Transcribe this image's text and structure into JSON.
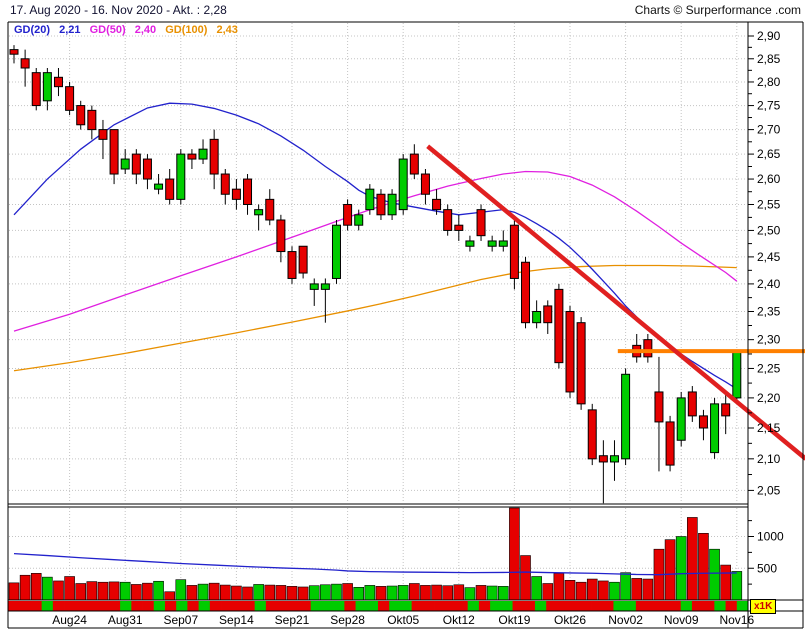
{
  "header": {
    "title": "17. Aug 2020 - 16. Nov 2020 - Akt. : 2,28",
    "source": "Charts © Surperformance .com"
  },
  "legend": {
    "items": [
      {
        "label": "GD(20)",
        "value": "2,21",
        "color": "#2222cc"
      },
      {
        "label": "GD(50)",
        "value": "2,40",
        "color": "#e020e0"
      },
      {
        "label": "GD(100)",
        "value": "2,43",
        "color": "#e89000"
      }
    ]
  },
  "badge": {
    "label": "x1K",
    "bg": "#ffff00",
    "fg": "#cc0000"
  },
  "colors": {
    "up": "#00cc00",
    "down": "#e60000",
    "candle_border": "#000000",
    "ma20": "#2222cc",
    "ma50": "#e020e0",
    "ma100": "#e89000",
    "trend": "#e02020",
    "hline": "#ff8000",
    "vol_avg": "#2222cc",
    "grid": "#c4c4c4",
    "axis": "#000000"
  },
  "chart_data": {
    "type": "candlestick",
    "title": "17. Aug 2020 - 16. Nov 2020 - Akt. : 2,28",
    "last_price": "2,28",
    "y_scale": "log",
    "ylim": [
      2.03,
      2.93
    ],
    "y_ticks": [
      2.9,
      2.85,
      2.8,
      2.75,
      2.7,
      2.65,
      2.6,
      2.55,
      2.5,
      2.45,
      2.4,
      2.35,
      2.3,
      2.25,
      2.2,
      2.15,
      2.1,
      2.05
    ],
    "x_ticks": [
      {
        "i": 5,
        "label": "Aug24"
      },
      {
        "i": 10,
        "label": "Aug31"
      },
      {
        "i": 15,
        "label": "Sep07"
      },
      {
        "i": 20,
        "label": "Sep14"
      },
      {
        "i": 25,
        "label": "Sep21"
      },
      {
        "i": 30,
        "label": "Sep28"
      },
      {
        "i": 35,
        "label": "Okt05"
      },
      {
        "i": 40,
        "label": "Okt12"
      },
      {
        "i": 45,
        "label": "Okt19"
      },
      {
        "i": 50,
        "label": "Okt26"
      },
      {
        "i": 55,
        "label": "Nov02"
      },
      {
        "i": 60,
        "label": "Nov09"
      },
      {
        "i": 65,
        "label": "Nov16"
      }
    ],
    "ohlc": [
      [
        2.87,
        2.88,
        2.84,
        2.86
      ],
      [
        2.85,
        2.87,
        2.79,
        2.83
      ],
      [
        2.82,
        2.83,
        2.74,
        2.75
      ],
      [
        2.76,
        2.83,
        2.74,
        2.82
      ],
      [
        2.81,
        2.83,
        2.77,
        2.79
      ],
      [
        2.79,
        2.8,
        2.73,
        2.74
      ],
      [
        2.75,
        2.76,
        2.7,
        2.71
      ],
      [
        2.74,
        2.75,
        2.68,
        2.7
      ],
      [
        2.7,
        2.72,
        2.64,
        2.68
      ],
      [
        2.7,
        2.7,
        2.59,
        2.61
      ],
      [
        2.62,
        2.66,
        2.61,
        2.64
      ],
      [
        2.65,
        2.66,
        2.59,
        2.61
      ],
      [
        2.64,
        2.65,
        2.58,
        2.6
      ],
      [
        2.58,
        2.61,
        2.57,
        2.59
      ],
      [
        2.6,
        2.62,
        2.55,
        2.56
      ],
      [
        2.56,
        2.66,
        2.55,
        2.65
      ],
      [
        2.65,
        2.66,
        2.62,
        2.64
      ],
      [
        2.64,
        2.68,
        2.63,
        2.66
      ],
      [
        2.68,
        2.7,
        2.58,
        2.61
      ],
      [
        2.61,
        2.62,
        2.55,
        2.57
      ],
      [
        2.58,
        2.6,
        2.54,
        2.56
      ],
      [
        2.6,
        2.61,
        2.53,
        2.55
      ],
      [
        2.53,
        2.55,
        2.5,
        2.54
      ],
      [
        2.56,
        2.58,
        2.51,
        2.52
      ],
      [
        2.52,
        2.53,
        2.44,
        2.46
      ],
      [
        2.46,
        2.47,
        2.4,
        2.41
      ],
      [
        2.47,
        2.47,
        2.41,
        2.42
      ],
      [
        2.39,
        2.41,
        2.36,
        2.4
      ],
      [
        2.39,
        2.41,
        2.33,
        2.4
      ],
      [
        2.41,
        2.52,
        2.4,
        2.51
      ],
      [
        2.55,
        2.56,
        2.5,
        2.51
      ],
      [
        2.51,
        2.54,
        2.5,
        2.53
      ],
      [
        2.54,
        2.59,
        2.53,
        2.58
      ],
      [
        2.57,
        2.58,
        2.52,
        2.53
      ],
      [
        2.53,
        2.58,
        2.52,
        2.57
      ],
      [
        2.54,
        2.65,
        2.53,
        2.64
      ],
      [
        2.65,
        2.67,
        2.6,
        2.61
      ],
      [
        2.61,
        2.62,
        2.55,
        2.57
      ],
      [
        2.56,
        2.58,
        2.53,
        2.54
      ],
      [
        2.54,
        2.55,
        2.49,
        2.5
      ],
      [
        2.51,
        2.53,
        2.48,
        2.5
      ],
      [
        2.47,
        2.49,
        2.46,
        2.48
      ],
      [
        2.54,
        2.55,
        2.48,
        2.49
      ],
      [
        2.47,
        2.49,
        2.46,
        2.48
      ],
      [
        2.47,
        2.5,
        2.46,
        2.48
      ],
      [
        2.51,
        2.52,
        2.39,
        2.41
      ],
      [
        2.44,
        2.45,
        2.32,
        2.33
      ],
      [
        2.33,
        2.37,
        2.32,
        2.35
      ],
      [
        2.36,
        2.37,
        2.31,
        2.33
      ],
      [
        2.39,
        2.4,
        2.25,
        2.26
      ],
      [
        2.35,
        2.36,
        2.2,
        2.21
      ],
      [
        2.33,
        2.34,
        2.18,
        2.19
      ],
      [
        2.18,
        2.19,
        2.09,
        2.1
      ],
      [
        2.105,
        2.13,
        2.03,
        2.095
      ],
      [
        2.095,
        2.13,
        2.065,
        2.105
      ],
      [
        2.1,
        2.25,
        2.09,
        2.24
      ],
      [
        2.29,
        2.31,
        2.26,
        2.27
      ],
      [
        2.3,
        2.31,
        2.26,
        2.27
      ],
      [
        2.21,
        2.27,
        2.08,
        2.16
      ],
      [
        2.16,
        2.17,
        2.08,
        2.09
      ],
      [
        2.13,
        2.21,
        2.12,
        2.2
      ],
      [
        2.21,
        2.22,
        2.16,
        2.17
      ],
      [
        2.17,
        2.18,
        2.13,
        2.15
      ],
      [
        2.11,
        2.2,
        2.1,
        2.19
      ],
      [
        2.19,
        2.21,
        2.14,
        2.17
      ],
      [
        2.2,
        2.28,
        2.19,
        2.28
      ]
    ],
    "volumes": [
      270,
      390,
      420,
      360,
      300,
      370,
      260,
      290,
      280,
      285,
      280,
      245,
      265,
      295,
      130,
      320,
      230,
      250,
      265,
      235,
      220,
      205,
      245,
      235,
      230,
      215,
      205,
      225,
      240,
      250,
      260,
      200,
      230,
      215,
      220,
      230,
      260,
      230,
      235,
      225,
      240,
      195,
      230,
      220,
      215,
      1550,
      700,
      370,
      260,
      420,
      310,
      280,
      330,
      300,
      280,
      430,
      340,
      330,
      800,
      950,
      1000,
      1300,
      1050,
      800,
      550,
      450
    ],
    "volume_ticks": [
      500,
      1000
    ],
    "volume_unit": "x1K",
    "ma20": {
      "name": "GD(20)",
      "last": 2.21,
      "points": [
        [
          0,
          2.53
        ],
        [
          3,
          2.6
        ],
        [
          6,
          2.66
        ],
        [
          9,
          2.71
        ],
        [
          12,
          2.745
        ],
        [
          14,
          2.755
        ],
        [
          16,
          2.753
        ],
        [
          18,
          2.744
        ],
        [
          20,
          2.73
        ],
        [
          22,
          2.712
        ],
        [
          24,
          2.687
        ],
        [
          26,
          2.658
        ],
        [
          28,
          2.625
        ],
        [
          30,
          2.595
        ],
        [
          31,
          2.578
        ],
        [
          32,
          2.566
        ],
        [
          34,
          2.553
        ],
        [
          36,
          2.545
        ],
        [
          38,
          2.537
        ],
        [
          40,
          2.53
        ],
        [
          42,
          2.535
        ],
        [
          44,
          2.54
        ],
        [
          45,
          2.535
        ],
        [
          46,
          2.525
        ],
        [
          47,
          2.513
        ],
        [
          48,
          2.5
        ],
        [
          49,
          2.485
        ],
        [
          50,
          2.468
        ],
        [
          51,
          2.448
        ],
        [
          52,
          2.427
        ],
        [
          53,
          2.405
        ],
        [
          54,
          2.383
        ],
        [
          55,
          2.36
        ],
        [
          56,
          2.34
        ],
        [
          57,
          2.322
        ],
        [
          58,
          2.305
        ],
        [
          59,
          2.29
        ],
        [
          60,
          2.275
        ],
        [
          61,
          2.262
        ],
        [
          62,
          2.25
        ],
        [
          63,
          2.238
        ],
        [
          64,
          2.227
        ],
        [
          65,
          2.215
        ]
      ]
    },
    "ma50": {
      "name": "GD(50)",
      "last": 2.4,
      "points": [
        [
          0,
          2.315
        ],
        [
          5,
          2.345
        ],
        [
          10,
          2.38
        ],
        [
          15,
          2.415
        ],
        [
          20,
          2.45
        ],
        [
          25,
          2.487
        ],
        [
          30,
          2.525
        ],
        [
          33,
          2.547
        ],
        [
          36,
          2.567
        ],
        [
          39,
          2.586
        ],
        [
          42,
          2.601
        ],
        [
          44,
          2.61
        ],
        [
          46,
          2.615
        ],
        [
          48,
          2.614
        ],
        [
          50,
          2.605
        ],
        [
          52,
          2.588
        ],
        [
          54,
          2.565
        ],
        [
          56,
          2.537
        ],
        [
          58,
          2.507
        ],
        [
          60,
          2.476
        ],
        [
          62,
          2.448
        ],
        [
          64,
          2.421
        ],
        [
          65,
          2.405
        ]
      ]
    },
    "ma100": {
      "name": "GD(100)",
      "last": 2.43,
      "points": [
        [
          0,
          2.246
        ],
        [
          5,
          2.26
        ],
        [
          10,
          2.276
        ],
        [
          15,
          2.294
        ],
        [
          20,
          2.312
        ],
        [
          25,
          2.331
        ],
        [
          30,
          2.351
        ],
        [
          33,
          2.364
        ],
        [
          36,
          2.378
        ],
        [
          39,
          2.393
        ],
        [
          42,
          2.408
        ],
        [
          45,
          2.42
        ],
        [
          48,
          2.428
        ],
        [
          51,
          2.432
        ],
        [
          54,
          2.434
        ],
        [
          58,
          2.434
        ],
        [
          61,
          2.433
        ],
        [
          65,
          2.43
        ]
      ]
    },
    "volume_avg_points": [
      [
        0,
        730
      ],
      [
        3,
        700
      ],
      [
        6,
        665
      ],
      [
        9,
        635
      ],
      [
        12,
        605
      ],
      [
        15,
        575
      ],
      [
        18,
        550
      ],
      [
        21,
        525
      ],
      [
        24,
        505
      ],
      [
        27,
        488
      ],
      [
        29,
        470
      ],
      [
        30,
        458
      ],
      [
        32,
        447
      ],
      [
        35,
        440
      ],
      [
        38,
        436
      ],
      [
        41,
        431
      ],
      [
        44,
        434
      ],
      [
        46,
        440
      ],
      [
        48,
        432
      ],
      [
        50,
        426
      ],
      [
        52,
        421
      ],
      [
        54,
        412
      ],
      [
        56,
        402
      ],
      [
        58,
        399
      ],
      [
        60,
        414
      ],
      [
        62,
        421
      ],
      [
        65,
        426
      ]
    ],
    "trendline": {
      "from_i": 37.2,
      "from_v": 2.666,
      "to_i": 71.2,
      "to_v": 2.1
    },
    "hline": {
      "value": 2.28,
      "from_i": 54.3
    }
  }
}
